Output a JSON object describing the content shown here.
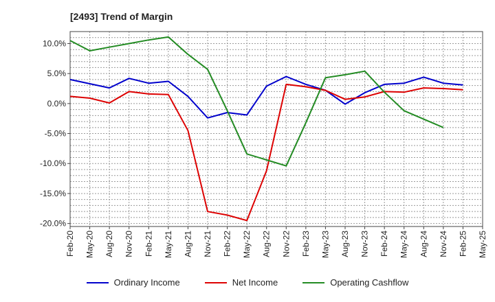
{
  "title": "[2493]  Trend of Margin",
  "chart_data": {
    "type": "line",
    "title": "[2493]  Trend of Margin",
    "x": [
      "Feb-20",
      "May-20",
      "Aug-20",
      "Nov-20",
      "Feb-21",
      "May-21",
      "Aug-21",
      "Nov-21",
      "Feb-22",
      "May-22",
      "Aug-22",
      "Nov-22",
      "Feb-23",
      "May-23",
      "Aug-23",
      "Nov-23",
      "Feb-24",
      "May-24",
      "Aug-24",
      "Nov-24",
      "Feb-25",
      "May-25"
    ],
    "ylim": [
      -20.5,
      12.0
    ],
    "yticks": [
      10.0,
      5.0,
      0.0,
      -5.0,
      -10.0,
      -15.0,
      -20.0
    ],
    "ytick_labels": [
      "10.0%",
      "5.0%",
      "0.0%",
      "-5.0%",
      "-10.0%",
      "-15.0%",
      "-20.0%"
    ],
    "grid": true,
    "legend_position": "bottom",
    "series": [
      {
        "name": "Ordinary Income",
        "color": "#0000cc",
        "values": [
          4.0,
          3.3,
          2.6,
          4.2,
          3.4,
          3.7,
          1.2,
          -2.4,
          -1.5,
          -1.9,
          2.9,
          4.5,
          3.2,
          2.2,
          -0.1,
          1.8,
          3.2,
          3.4,
          4.4,
          3.4,
          3.1,
          null
        ]
      },
      {
        "name": "Net Income",
        "color": "#dd0000",
        "values": [
          1.2,
          0.9,
          0.1,
          2.0,
          1.6,
          1.5,
          -4.5,
          -18.0,
          -18.6,
          -19.5,
          -11.2,
          3.2,
          2.8,
          2.2,
          0.7,
          1.1,
          2.0,
          1.9,
          2.6,
          2.5,
          2.3,
          null
        ]
      },
      {
        "name": "Operating Cashflow",
        "color": "#228b22",
        "values": [
          10.5,
          8.8,
          9.4,
          10.0,
          10.6,
          11.1,
          8.2,
          5.7,
          -1.2,
          -8.4,
          -9.4,
          -10.4,
          -3.2,
          4.3,
          4.8,
          5.4,
          1.9,
          -1.2,
          -2.6,
          -4.0,
          null,
          null
        ]
      }
    ]
  }
}
